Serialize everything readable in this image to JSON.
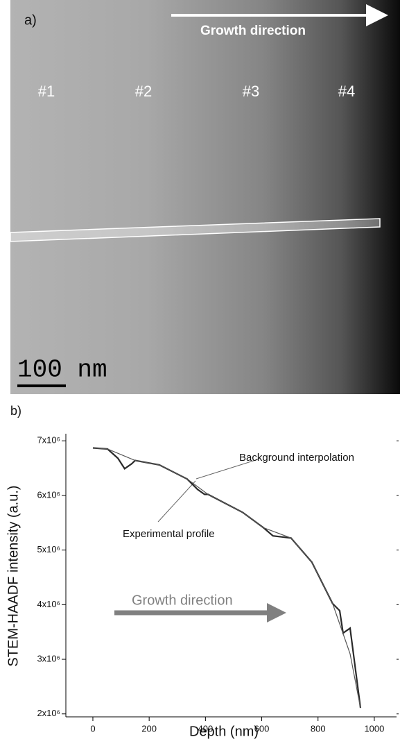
{
  "panel_a": {
    "label": "a)",
    "arrow_label": "Growth direction",
    "regions": [
      "#1",
      "#2",
      "#3",
      "#4"
    ],
    "scale_bar": "100 nm"
  },
  "chart_data": {
    "type": "line",
    "label": "b)",
    "x_label": "Depth (nm)",
    "y_label": "STEM-HAADF intensity (a.u.)",
    "xlim": [
      -96,
      1079
    ],
    "xticks": [
      0,
      200,
      400,
      600,
      800,
      1000
    ],
    "ylim": [
      1730000,
      7130000
    ],
    "yticks": [
      {
        "value": 2000000,
        "label": "2x10⁶"
      },
      {
        "value": 3000000,
        "label": "3x10⁶"
      },
      {
        "value": 4000000,
        "label": "4x10⁶"
      },
      {
        "value": 5000000,
        "label": "5x10⁶"
      },
      {
        "value": 6000000,
        "label": "6x10⁶"
      },
      {
        "value": 7000000,
        "label": "7x10⁶"
      }
    ],
    "series": [
      {
        "name": "Experimental profile",
        "color": "#2a2a2a",
        "x": [
          0,
          52,
          89,
          113,
          138,
          150,
          236,
          335,
          372,
          397,
          409,
          532,
          606,
          640,
          704,
          778,
          852,
          877,
          889,
          914,
          951
        ],
        "values": [
          6870000,
          6850000,
          6680000,
          6490000,
          6580000,
          6640000,
          6560000,
          6300000,
          6110000,
          6020000,
          6020000,
          5690000,
          5410000,
          5260000,
          5220000,
          4780000,
          4020000,
          3890000,
          3480000,
          3570000,
          2110000
        ]
      },
      {
        "name": "Background interpolation",
        "color": "#555555",
        "x": [
          0,
          52,
          150,
          236,
          335,
          409,
          532,
          606,
          704,
          778,
          852,
          914,
          951
        ],
        "values": [
          6870000,
          6850000,
          6640000,
          6560000,
          6300000,
          6020000,
          5690000,
          5410000,
          5220000,
          4780000,
          4020000,
          3100000,
          2110000
        ]
      }
    ],
    "growth_arrow_label": "Growth direction"
  }
}
